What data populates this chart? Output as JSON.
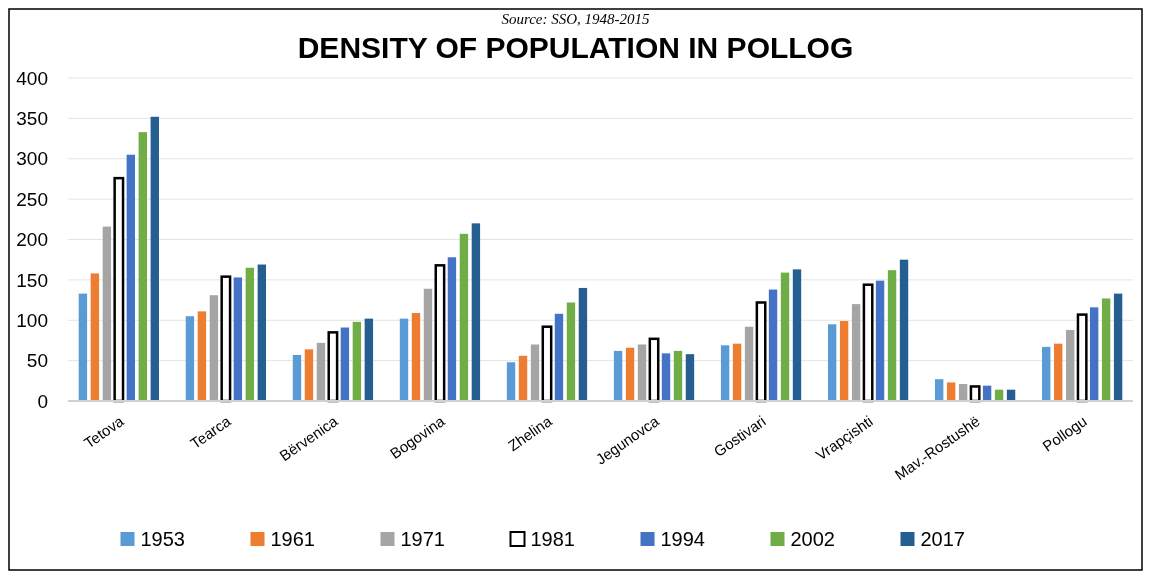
{
  "chart_data": {
    "type": "bar",
    "title": "DENSITY OF POPULATION IN POLLOG",
    "annotations": [
      "Source: SSO, 1948-2015"
    ],
    "categories": [
      "Tetova",
      "Tearca",
      "Bërvenica",
      "Bogovina",
      "Zhelina",
      "Jegunovca",
      "Gostivari",
      "Vrapçishti",
      "Mav.-Rostushë",
      "Pollogu"
    ],
    "series": [
      {
        "name": "1953",
        "color": "#5b9bd5",
        "values": [
          133,
          105,
          57,
          102,
          48,
          62,
          69,
          95,
          27,
          67
        ]
      },
      {
        "name": "1961",
        "color": "#ed7d31",
        "values": [
          158,
          111,
          64,
          109,
          56,
          66,
          71,
          99,
          23,
          71
        ]
      },
      {
        "name": "1971",
        "color": "#a5a5a5",
        "values": [
          216,
          131,
          72,
          139,
          70,
          70,
          92,
          120,
          21,
          88
        ]
      },
      {
        "name": "1981",
        "color": "#ffffff",
        "values": [
          276,
          154,
          85,
          168,
          92,
          77,
          122,
          144,
          18,
          107
        ]
      },
      {
        "name": "1994",
        "color": "#4472c4",
        "values": [
          305,
          153,
          91,
          178,
          108,
          59,
          138,
          149,
          19,
          116
        ]
      },
      {
        "name": "2002",
        "color": "#70ad47",
        "values": [
          333,
          165,
          98,
          207,
          122,
          62,
          159,
          162,
          14,
          127
        ]
      },
      {
        "name": "2017",
        "color": "#255e91",
        "values": [
          352,
          169,
          102,
          220,
          140,
          58,
          163,
          175,
          14,
          133
        ]
      }
    ],
    "ylim": [
      0,
      400
    ],
    "yticks": [
      0,
      50,
      100,
      150,
      200,
      250,
      300,
      350,
      400
    ],
    "grid": "y",
    "legend": "bottom"
  }
}
